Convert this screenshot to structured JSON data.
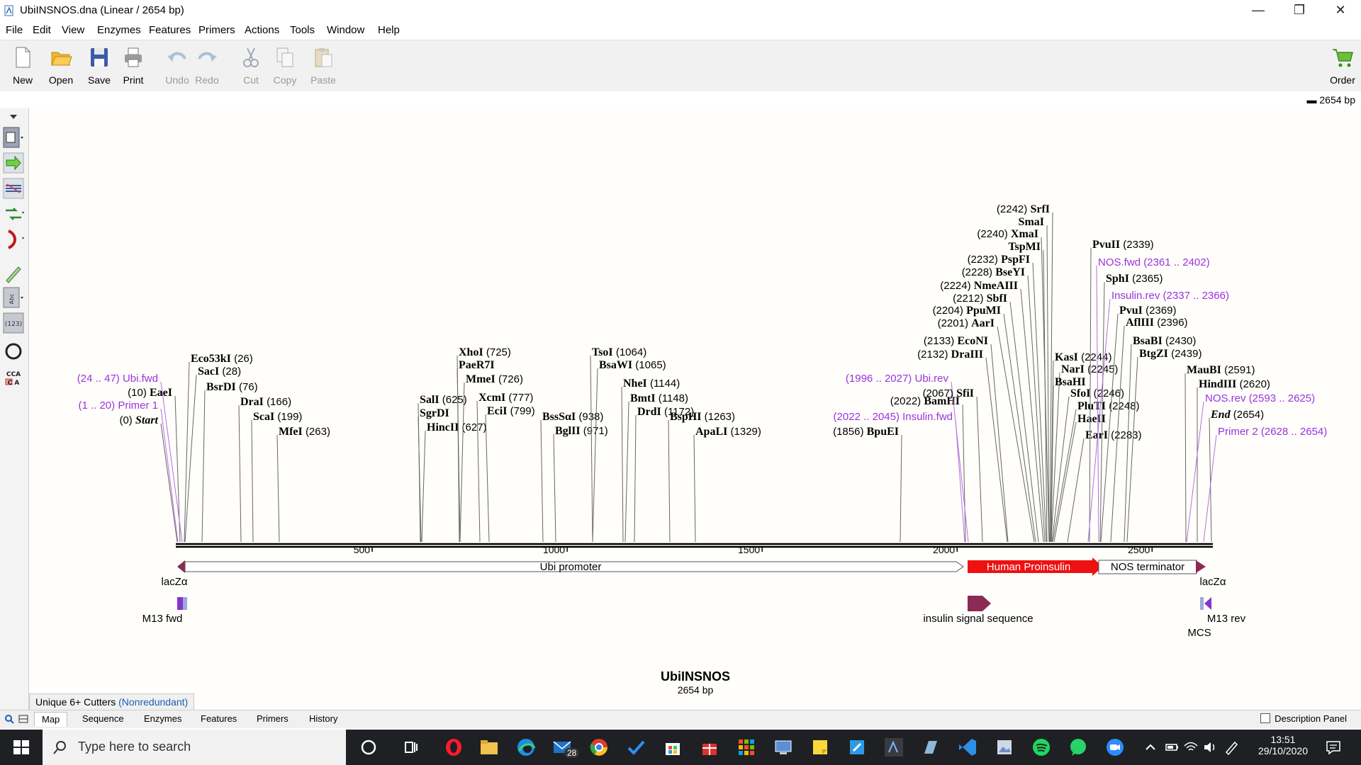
{
  "window": {
    "title": "UbiINSNOS.dna  (Linear / 2654 bp)",
    "controls": [
      "—",
      "❐",
      "✕"
    ]
  },
  "menu": [
    "File",
    "Edit",
    "View",
    "Enzymes",
    "Features",
    "Primers",
    "Actions",
    "Tools",
    "Window",
    "Help"
  ],
  "toolbar": {
    "new": "New",
    "open": "Open",
    "save": "Save",
    "print": "Print",
    "undo": "Undo",
    "redo": "Redo",
    "cut": "Cut",
    "copy": "Copy",
    "paste": "Paste",
    "order": "Order"
  },
  "length_readout": "2654 bp",
  "map": {
    "name": "UbiINSNOS",
    "length": "2654 bp",
    "ruler": [
      "500",
      "1000",
      "1500",
      "2000",
      "2500"
    ],
    "features": {
      "ubi": "Ubi promoter",
      "insulin": "Human Proinsulin",
      "nos": "NOS terminator",
      "lacz_left": "lacZα",
      "lacz_right": "lacZα",
      "m13fwd": "M13 fwd",
      "m13rev": "M13 rev",
      "signal": "insulin signal sequence",
      "mcs": "MCS"
    },
    "sites": [
      {
        "pos": "(0)",
        "name": "Start",
        "italic": true
      },
      {
        "pos": "(1 .. 20)",
        "name": "Primer 1",
        "purple": true
      },
      {
        "pos": "(10)",
        "name": "EaeI"
      },
      {
        "pos": "(24 .. 47)",
        "name": "Ubi.fwd",
        "purple": true
      },
      {
        "name": "Eco53kI",
        "pos": "(26)"
      },
      {
        "name": "SacI",
        "pos": "(28)"
      },
      {
        "name": "BsrDI",
        "pos": "(76)"
      },
      {
        "name": "DraI",
        "pos": "(166)"
      },
      {
        "name": "ScaI",
        "pos": "(199)"
      },
      {
        "name": "MfeI",
        "pos": "(263)"
      },
      {
        "name": "SalI",
        "pos": "(625)"
      },
      {
        "name": "SgrDI",
        "pos": ""
      },
      {
        "name": "HincII",
        "pos": "(627)"
      },
      {
        "name": "XhoI",
        "pos": "(725)"
      },
      {
        "name": "PaeR7I",
        "pos": ""
      },
      {
        "name": "MmeI",
        "pos": "(726)"
      },
      {
        "name": "XcmI",
        "pos": "(777)"
      },
      {
        "name": "EciI",
        "pos": "(799)"
      },
      {
        "name": "BssSαI",
        "pos": "(938)"
      },
      {
        "name": "BglII",
        "pos": "(971)"
      },
      {
        "name": "TsoI",
        "pos": "(1064)"
      },
      {
        "name": "BsaWI",
        "pos": "(1065)"
      },
      {
        "name": "NheI",
        "pos": "(1144)"
      },
      {
        "name": "BmtI",
        "pos": "(1148)"
      },
      {
        "name": "DrdI",
        "pos": "(1172)"
      },
      {
        "name": "BspHI",
        "pos": "(1263)"
      },
      {
        "name": "ApaLI",
        "pos": "(1329)"
      },
      {
        "pos": "(1856)",
        "name": "BpuEI"
      },
      {
        "pos": "(2022 .. 2045)",
        "name": "Insulin.fwd",
        "purple": true
      },
      {
        "pos": "(2022)",
        "name": "BamHI"
      },
      {
        "pos": "(1996 .. 2027)",
        "name": "Ubi.rev",
        "purple": true
      },
      {
        "pos": "(2067)",
        "name": "SfiI"
      },
      {
        "pos": "(2132)",
        "name": "DraIII"
      },
      {
        "pos": "(2133)",
        "name": "EcoNI"
      },
      {
        "pos": "(2201)",
        "name": "AarI"
      },
      {
        "pos": "(2204)",
        "name": "PpuMI"
      },
      {
        "pos": "(2212)",
        "name": "SbfI"
      },
      {
        "pos": "(2224)",
        "name": "NmeAIII"
      },
      {
        "pos": "(2228)",
        "name": "BseYI"
      },
      {
        "pos": "(2232)",
        "name": "PspFI"
      },
      {
        "pos": "",
        "name": "TspMI"
      },
      {
        "pos": "(2240)",
        "name": "XmaI"
      },
      {
        "pos": "",
        "name": "SmaI"
      },
      {
        "pos": "(2242)",
        "name": "SrfI"
      },
      {
        "name": "KasI",
        "pos": "(2244)"
      },
      {
        "name": "NarI",
        "pos": "(2245)"
      },
      {
        "name": "BsaHI",
        "pos": ""
      },
      {
        "name": "SfoI",
        "pos": "(2246)"
      },
      {
        "name": "PluTI",
        "pos": "(2248)"
      },
      {
        "name": "HaeII",
        "pos": ""
      },
      {
        "name": "EarI",
        "pos": "(2283)"
      },
      {
        "name": "PvuII",
        "pos": "(2339)"
      },
      {
        "name": "NOS.fwd",
        "pos": "(2361 .. 2402)",
        "purple": true
      },
      {
        "name": "SphI",
        "pos": "(2365)"
      },
      {
        "name": "Insulin.rev",
        "pos": "(2337 .. 2366)",
        "purple": true
      },
      {
        "name": "PvuI",
        "pos": "(2369)"
      },
      {
        "name": "AflIII",
        "pos": "(2396)"
      },
      {
        "name": "BsaBI",
        "pos": "(2430)"
      },
      {
        "name": "BtgZI",
        "pos": "(2439)"
      },
      {
        "name": "MauBI",
        "pos": "(2591)"
      },
      {
        "name": "HindIII",
        "pos": "(2620)"
      },
      {
        "name": "NOS.rev",
        "pos": "(2593 .. 2625)",
        "purple": true
      },
      {
        "name": "End",
        "pos": "(2654)",
        "italic": true
      },
      {
        "name": "Primer 2",
        "pos": "(2628 .. 2654)",
        "purple": true
      }
    ]
  },
  "enzyme_filter": {
    "label": "Unique 6+ Cutters",
    "mode": "(Nonredundant)"
  },
  "tabs": [
    "Map",
    "Sequence",
    "Enzymes",
    "Features",
    "Primers",
    "History"
  ],
  "description_panel": "Description Panel",
  "taskbar": {
    "search_placeholder": "Type here to search",
    "mail_badge": "28",
    "time": "13:51",
    "date": "29/10/2020"
  },
  "colors": {
    "insulin": "#ee1111",
    "lacz": "#8b2a55",
    "primer": "#9933dd",
    "toolbar": "#f1f1f1"
  }
}
